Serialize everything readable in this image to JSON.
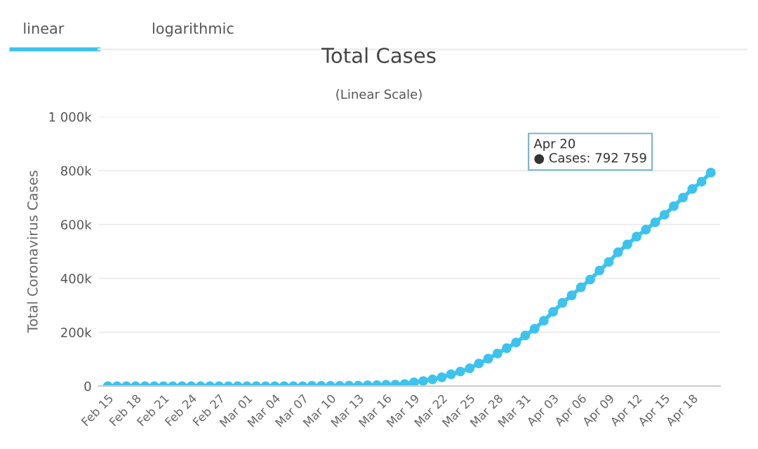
{
  "chart_data": {
    "type": "line",
    "title": "Total Cases",
    "subtitle": "(Linear Scale)",
    "ylabel": "Total Coronavirus Cases",
    "annotations": [
      "linear",
      "logarithmic",
      "Apr 20\n● Cases: 792 759"
    ],
    "categories": [
      "Feb 15",
      null,
      null,
      "Feb 18",
      null,
      null,
      "Feb 21",
      null,
      null,
      "Feb 24",
      null,
      null,
      "Feb 27",
      null,
      null,
      "Mar 01",
      null,
      null,
      "Mar 04",
      null,
      null,
      "Mar 07",
      null,
      null,
      "Mar 10",
      null,
      null,
      "Mar 13",
      null,
      null,
      "Mar 16",
      null,
      null,
      "Mar 19",
      null,
      null,
      "Mar 22",
      null,
      null,
      "Mar 25",
      null,
      null,
      "Mar 28",
      null,
      null,
      "Mar 31",
      null,
      null,
      "Apr 03",
      null,
      null,
      "Apr 06",
      null,
      null,
      "Apr 09",
      null,
      null,
      "Apr 12",
      null,
      null,
      "Apr 15",
      null,
      null,
      "Apr 18",
      null,
      null
    ],
    "series": [
      {
        "color": "#3cc3ee",
        "values": [
          0,
          0,
          0,
          0,
          0,
          0,
          0,
          0,
          0,
          0,
          0,
          0,
          0,
          0,
          0,
          0,
          0,
          0,
          0,
          0,
          0,
          0,
          1000,
          1000,
          1000,
          1000,
          2000,
          2000,
          3000,
          4000,
          5000,
          6000,
          8000,
          14000,
          19000,
          25000,
          33000,
          44000,
          54000,
          66000,
          84000,
          102000,
          121000,
          141000,
          162000,
          188000,
          213000,
          243000,
          276000,
          309000,
          337000,
          367000,
          396000,
          429000,
          461000,
          497000,
          526000,
          555000,
          581000,
          608000,
          636000,
          668000,
          700000,
          732000,
          759000,
          792759
        ]
      }
    ],
    "ylim": [
      0,
      1000000
    ],
    "yticks": [
      0,
      {
        "value": 200000,
        "label": "200k"
      },
      {
        "value": 400000,
        "label": "400k"
      },
      {
        "value": 600000,
        "label": "600k"
      },
      {
        "value": 800000,
        "label": "800k"
      },
      {
        "value": 1000000,
        "label": "1 000k"
      }
    ],
    "grid": "y",
    "marker": "circle",
    "line_style": "solid"
  }
}
